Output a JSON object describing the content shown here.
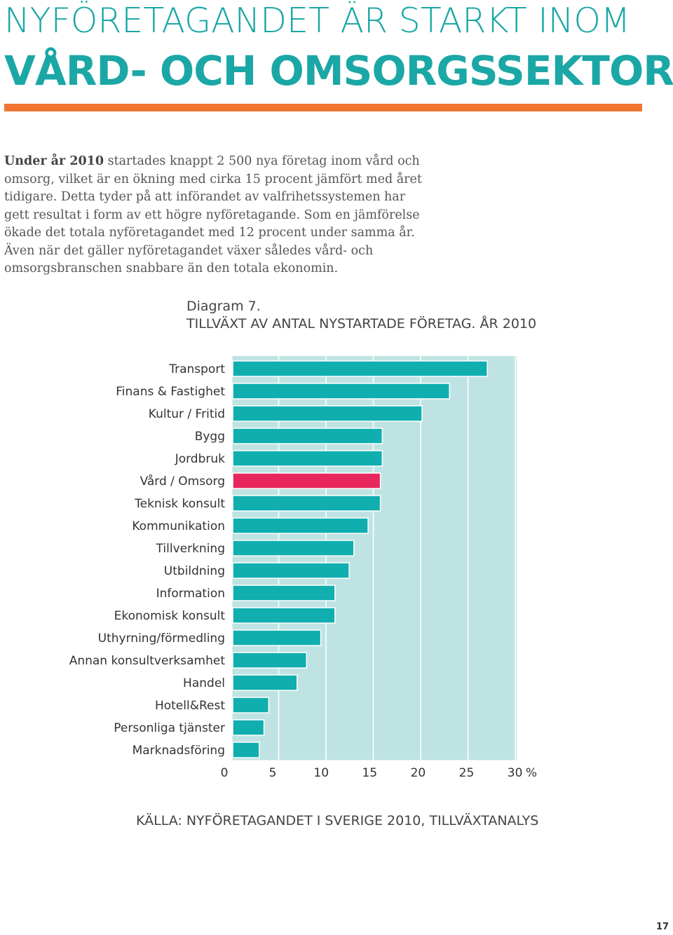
{
  "header": {
    "title_line1": "NYFÖRETAGANDET ÄR STARKT INOM",
    "title_line2": "VÅRD- OCH OMSORGSSEKTORN"
  },
  "intro": {
    "lead": "Under år 2010",
    "text": " startades knappt 2 500 nya företag inom vård och omsorg, vilket är en ökning med cirka 15 procent jämfört med året tidigare. Detta tyder på att införandet av valfrihetssystemen har gett resultat i form av ett högre nyföretagande. Som en jämförelse ökade det totala nyföretagandet med 12 procent under samma år. Även när det gäller nyföretagandet växer således vård- och omsorgsbranschen snabbare än den totala ekonomin."
  },
  "diagram": {
    "label": "Diagram 7.",
    "title": "TILLVÄXT AV ANTAL NYSTARTADE FÖRETAG. ÅR 2010",
    "source": "KÄLLA: NYFÖRETAGANDET I SVERIGE 2010, TILLVÄXTANALYS"
  },
  "chart_data": {
    "type": "bar",
    "orientation": "horizontal",
    "title": "TILLVÄXT AV ANTAL NYSTARTADE FÖRETAG. ÅR 2010",
    "categories": [
      "Transport",
      "Finans & Fastighet",
      "Kultur / Fritid",
      "Bygg",
      "Jordbruk",
      "Vård / Omsorg",
      "Teknisk konsult",
      "Kommunikation",
      "Tillverkning",
      "Utbildning",
      "Information",
      "Ekonomisk konsult",
      "Uthyrning/förmedling",
      "Annan konsultverksamhet",
      "Handel",
      "Hotell&Rest",
      "Personliga tjänster",
      "Marknadsföring"
    ],
    "values": [
      26.9,
      22.9,
      20.0,
      15.8,
      15.8,
      15.6,
      15.6,
      14.3,
      12.8,
      12.3,
      10.8,
      10.8,
      9.3,
      7.8,
      6.8,
      3.8,
      3.3,
      2.8
    ],
    "highlight": "Vård / Omsorg",
    "x_ticks": [
      0,
      5,
      10,
      15,
      20,
      25,
      30
    ],
    "xlim": [
      0,
      30
    ],
    "unit": "%",
    "grid": true,
    "colors": {
      "bar": "#10aeae",
      "highlight": "#e8265e",
      "plot_bg": "#bfe3e3",
      "grid": "#ffffff"
    }
  },
  "footer": {
    "page_number": "17"
  }
}
